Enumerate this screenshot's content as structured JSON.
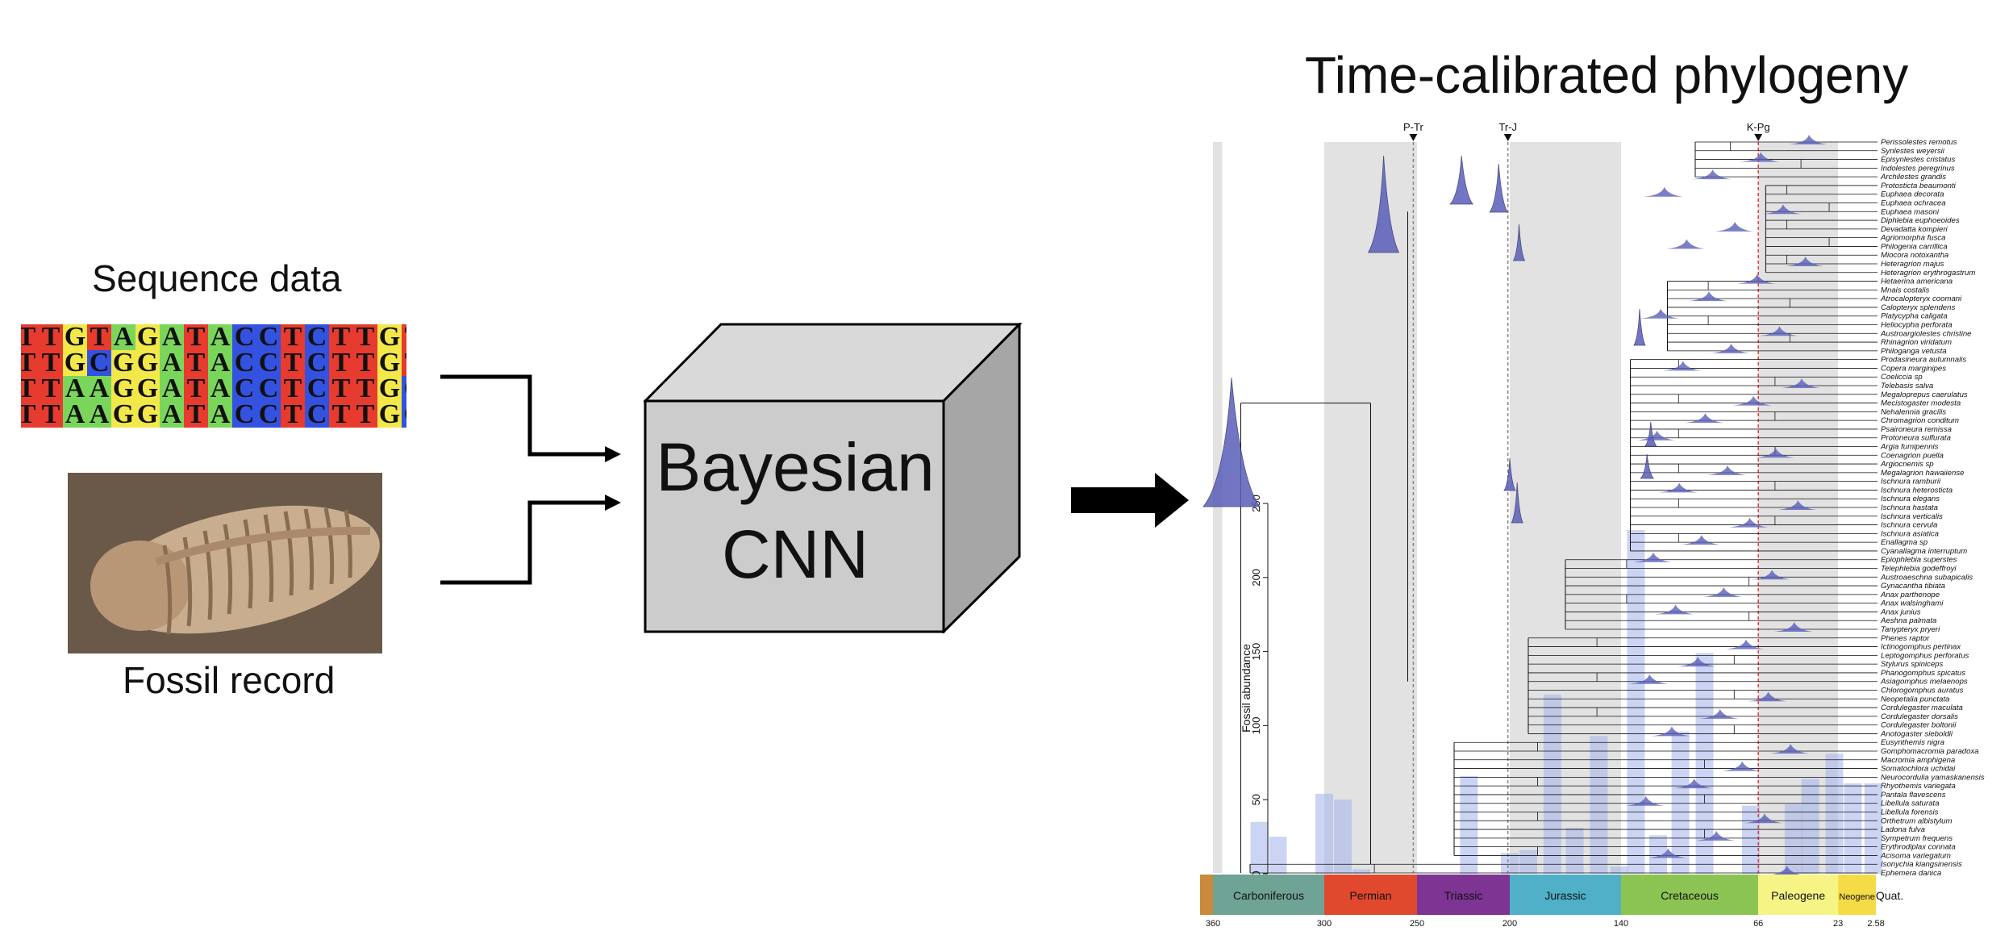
{
  "titles": {
    "sequence": "Sequence data",
    "fossil": "Fossil record",
    "phylogeny": "Time-calibrated phylogeny"
  },
  "model": {
    "line1": "Bayesian",
    "line2": "CNN"
  },
  "sequence": {
    "rows": [
      "TTGTAGATACCTCTTGTTGA",
      "TTGCGGATACCTCTTGTTGA",
      "ATTAAGGATACCTCTTGCTGA",
      "ATTAAGGATACCTCTTGCTGA"
    ],
    "colors": {
      "A": "#7ad65a",
      "T": "#e63b2e",
      "G": "#f2e84a",
      "C": "#3352e0"
    }
  },
  "fossil_image": {
    "description_icon": "trilobite-fossil"
  },
  "events": [
    "P-Tr",
    "Tr-J",
    "K-Pg"
  ],
  "axis": {
    "label": "Fossil abundance",
    "ticks": [
      "0",
      "50",
      "100",
      "150",
      "200",
      "250"
    ],
    "max": 250
  },
  "periods": [
    {
      "name": "Carboniferous",
      "start": 360,
      "end": 300,
      "color": "#6fa395"
    },
    {
      "name": "Permian",
      "start": 300,
      "end": 250,
      "color": "#e1492f"
    },
    {
      "name": "Triassic",
      "start": 250,
      "end": 200,
      "color": "#7d3493"
    },
    {
      "name": "Jurassic",
      "start": 200,
      "end": 140,
      "color": "#4fb0c8"
    },
    {
      "name": "Cretaceous",
      "start": 140,
      "end": 66,
      "color": "#8cc453"
    },
    {
      "name": "Paleogene",
      "start": 66,
      "end": 23,
      "color": "#f7f486"
    },
    {
      "name": "Neogene",
      "start": 23,
      "end": 2.58,
      "color": "#f5dc46"
    },
    {
      "name": "Quat.",
      "start": 2.58,
      "end": 0,
      "color": "#ffffff"
    }
  ],
  "time_ticks": [
    "360",
    "300",
    "250",
    "200",
    "140",
    "66",
    "23",
    "2.58"
  ],
  "fossil_bars": [
    {
      "age": 335,
      "value": 35
    },
    {
      "age": 325,
      "value": 25
    },
    {
      "age": 300,
      "value": 54
    },
    {
      "age": 290,
      "value": 50
    },
    {
      "age": 280,
      "value": 3
    },
    {
      "age": 222,
      "value": 66
    },
    {
      "age": 200,
      "value": 14
    },
    {
      "age": 190,
      "value": 16
    },
    {
      "age": 177,
      "value": 121
    },
    {
      "age": 165,
      "value": 31
    },
    {
      "age": 152,
      "value": 93
    },
    {
      "age": 141,
      "value": 5
    },
    {
      "age": 132,
      "value": 232
    },
    {
      "age": 120,
      "value": 26
    },
    {
      "age": 108,
      "value": 96
    },
    {
      "age": 95,
      "value": 149
    },
    {
      "age": 70,
      "value": 46
    },
    {
      "age": 47,
      "value": 47
    },
    {
      "age": 38,
      "value": 64
    },
    {
      "age": 25,
      "value": 81
    },
    {
      "age": 15,
      "value": 61
    },
    {
      "age": 4,
      "value": 61
    }
  ],
  "taxa": [
    "Perissolestes remotus",
    "Synlestes weyersii",
    "Episynlestes cristatus",
    "Indolestes peregrinus",
    "Archilestes grandis",
    "Protosticta beaumonti",
    "Euphaea decorata",
    "Euphaea ochracea",
    "Euphaea masoni",
    "Diphlebia euphoeoides",
    "Devadatta kompieri",
    "Agriomorpha fusca",
    "Philogenia carrillica",
    "Miocora notoxantha",
    "Heteragrion majus",
    "Heteragrion erythrogastrum",
    "Hetaerina americana",
    "Mnais costalis",
    "Atrocalopteryx coomani",
    "Calopteryx splendens",
    "Platycypha caligata",
    "Heliocypha perforata",
    "Austroargiolestes christine",
    "Rhinagrion viridatum",
    "Philoganga vetusta",
    "Prodasineura autumnalis",
    "Copera marginipes",
    "Coeliccia sp",
    "Telebasis salva",
    "Megaloprepus caerulatus",
    "Mecistogaster modesta",
    "Nehalennia gracilis",
    "Chromagrion conditum",
    "Psaironeura remissa",
    "Protoneura sulfurata",
    "Argia fumipennis",
    "Coenagrion puella",
    "Argiocnemis sp",
    "Megalagrion hawaiiense",
    "Ischnura ramburii",
    "Ischnura heterosticta",
    "Ischnura elegans",
    "Ischnura hastata",
    "Ischnura verticalis",
    "Ischnura cervula",
    "Ischnura asiatica",
    "Enallagma sp",
    "Cyanallagma interruptum",
    "Epiophlebia superstes",
    "Telephlebia godeffroyi",
    "Austroaeschna subapicalis",
    "Gynacantha tibiata",
    "Anax parthenope",
    "Anax walsinghami",
    "Anax junius",
    "Aeshna palmata",
    "Tanypteryx pryeri",
    "Phenes raptor",
    "Ictinogomphus pertinax",
    "Leptogomphus perforatus",
    "Stylurus spiniceps",
    "Phanogomphus spicatus",
    "Asiagomphus melaenops",
    "Chlorogomphus auratus",
    "Neopetalia punctata",
    "Cordulegaster maculata",
    "Cordulegaster dorsalis",
    "Cordulegaster boltonii",
    "Anotogaster sieboldii",
    "Eusynthemis nigra",
    "Gomphomacromia paradoxa",
    "Macromia amphigena",
    "Somatochlora uchidai",
    "Neurocordulia yamaskanensis",
    "Rhyothemis variegata",
    "Pantala flavescens",
    "Libellula saturata",
    "Libellula forensis",
    "Orthetrum albistylum",
    "Ladona fulva",
    "Sympetrum frequens",
    "Erythrodiplax connata",
    "Acisoma variegatum",
    "Isonychia kiangsinensis",
    "Ephemera danica"
  ]
}
